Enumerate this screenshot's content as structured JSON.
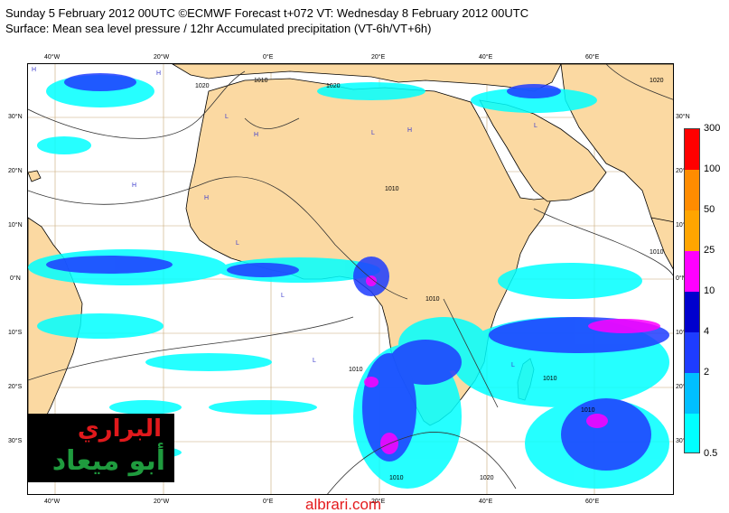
{
  "header": {
    "line1": "Sunday 5 February 2012 00UTC ©ECMWF Forecast t+072 VT: Wednesday 8 February 2012 00UTC",
    "line2": "Surface: Mean sea level pressure / 12hr Accumulated precipitation (VT-6h/VT+6h)"
  },
  "map": {
    "lon_labels_top": [
      "40°W",
      "20°W",
      "0°E",
      "20°E",
      "40°E",
      "60°E"
    ],
    "lon_labels_bottom": [
      "40°W",
      "20°W",
      "0°E",
      "20°E",
      "40°E",
      "60°E"
    ],
    "lat_labels_left": [
      "30°N",
      "20°N",
      "10°N",
      "0°N",
      "10°S",
      "20°S",
      "30°S"
    ],
    "lat_labels_right": [
      "30°N",
      "20°N",
      "10°N",
      "0°N",
      "10°S",
      "20°S",
      "30°S"
    ],
    "isobar_labels": [
      "1020",
      "1010",
      "1020",
      "1010",
      "1010",
      "1010",
      "1010",
      "1020",
      "1010",
      "1010",
      "1020",
      "1010"
    ],
    "high_marker": "H",
    "low_marker": "L",
    "colors": {
      "land": "#fbd9a2",
      "ocean": "#ffffff",
      "coastline": "#000000",
      "isobar": "#333333"
    }
  },
  "legend": {
    "labels": [
      "300",
      "100",
      "50",
      "25",
      "10",
      "4",
      "2",
      "0.5"
    ],
    "colors": [
      "#ff0000",
      "#ff8c00",
      "#ffa500",
      "#ff00ff",
      "#0000cd",
      "#1e3cff",
      "#00bfff",
      "#00ffff"
    ]
  },
  "logo": {
    "line1": "البراري",
    "line2": "أبو ميعاد"
  },
  "site": "albrari.com"
}
